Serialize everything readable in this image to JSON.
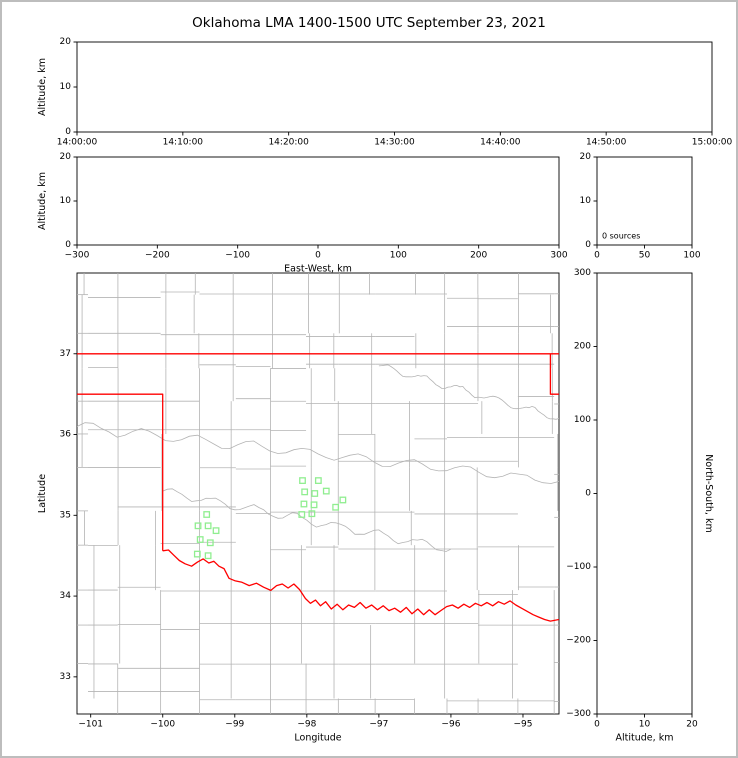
{
  "title": "Oklahoma LMA 1400-1500 UTC September 23, 2021",
  "colors": {
    "axis": "#000000",
    "county": "#b4b4b4",
    "state_border": "#ff0000",
    "station": "#90EE90",
    "background": "#ffffff",
    "figure_border": "#bdbdbd"
  },
  "chart_data": [
    {
      "id": "time_height",
      "type": "scatter",
      "ylabel": "Altitude, km",
      "xlim": [
        0,
        6
      ],
      "xtick_values": [
        0,
        1,
        2,
        3,
        4,
        5,
        6
      ],
      "xtick_labels": [
        "14:00:00",
        "14:10:00",
        "14:20:00",
        "14:30:00",
        "14:40:00",
        "14:50:00",
        "15:00:00"
      ],
      "ylim": [
        0,
        20
      ],
      "ytick_values": [
        0,
        10,
        20
      ],
      "points": []
    },
    {
      "id": "ew_height",
      "type": "scatter",
      "xlabel": "East-West, km",
      "ylabel": "Altitude, km",
      "xlim": [
        -300,
        300
      ],
      "xtick_values": [
        -300,
        -200,
        -100,
        0,
        100,
        200,
        300
      ],
      "ylim": [
        0,
        20
      ],
      "ytick_values": [
        0,
        10,
        20
      ],
      "points": []
    },
    {
      "id": "alt_histogram",
      "type": "histogram",
      "annotation": "0 sources",
      "xlim": [
        0,
        100
      ],
      "xtick_values": [
        0,
        50,
        100
      ],
      "ylim": [
        0,
        20
      ],
      "ytick_values": [
        0,
        10,
        20
      ],
      "points": []
    },
    {
      "id": "plan_view",
      "type": "scatter",
      "xlabel": "Longitude",
      "ylabel": "Latitude",
      "xlim": [
        -101.19,
        -94.5
      ],
      "xtick_values": [
        -101,
        -100,
        -99,
        -98,
        -97,
        -96,
        -95
      ],
      "ylim": [
        32.54,
        38.0
      ],
      "ytick_values": [
        33,
        34,
        35,
        36,
        37
      ],
      "stations": [
        [
          -98.06,
          35.43
        ],
        [
          -97.84,
          35.43
        ],
        [
          -98.03,
          35.29
        ],
        [
          -97.89,
          35.27
        ],
        [
          -97.73,
          35.3
        ],
        [
          -98.04,
          35.14
        ],
        [
          -97.9,
          35.13
        ],
        [
          -98.07,
          35.01
        ],
        [
          -97.93,
          35.02
        ],
        [
          -97.5,
          35.19
        ],
        [
          -97.6,
          35.1
        ],
        [
          -99.39,
          35.01
        ],
        [
          -99.51,
          34.87
        ],
        [
          -99.37,
          34.87
        ],
        [
          -99.26,
          34.81
        ],
        [
          -99.48,
          34.7
        ],
        [
          -99.34,
          34.66
        ],
        [
          -99.52,
          34.52
        ],
        [
          -99.37,
          34.5
        ]
      ],
      "state_border_segments": [
        [
          [
            -101.19,
            37.0
          ],
          [
            -94.5,
            37.0
          ]
        ],
        [
          [
            -94.62,
            37.0
          ],
          [
            -94.62,
            36.5
          ],
          [
            -94.5,
            36.5
          ]
        ],
        [
          [
            -101.19,
            36.5
          ],
          [
            -100.0,
            36.5
          ],
          [
            -100.0,
            34.56
          ]
        ],
        [
          [
            -100.0,
            34.56
          ],
          [
            -99.92,
            34.57
          ],
          [
            -99.84,
            34.5
          ],
          [
            -99.77,
            34.44
          ],
          [
            -99.69,
            34.4
          ],
          [
            -99.6,
            34.37
          ],
          [
            -99.52,
            34.42
          ],
          [
            -99.44,
            34.46
          ],
          [
            -99.36,
            34.41
          ],
          [
            -99.29,
            34.43
          ],
          [
            -99.22,
            34.37
          ],
          [
            -99.15,
            34.34
          ],
          [
            -99.08,
            34.22
          ],
          [
            -99.0,
            34.19
          ],
          [
            -98.9,
            34.17
          ],
          [
            -98.8,
            34.13
          ],
          [
            -98.7,
            34.16
          ],
          [
            -98.6,
            34.11
          ],
          [
            -98.5,
            34.07
          ],
          [
            -98.42,
            34.13
          ],
          [
            -98.34,
            34.15
          ],
          [
            -98.26,
            34.1
          ],
          [
            -98.18,
            34.15
          ],
          [
            -98.1,
            34.08
          ],
          [
            -98.02,
            33.97
          ],
          [
            -97.95,
            33.91
          ],
          [
            -97.88,
            33.95
          ],
          [
            -97.81,
            33.88
          ],
          [
            -97.74,
            33.93
          ],
          [
            -97.66,
            33.84
          ],
          [
            -97.58,
            33.9
          ],
          [
            -97.5,
            33.83
          ],
          [
            -97.42,
            33.89
          ],
          [
            -97.34,
            33.86
          ],
          [
            -97.26,
            33.92
          ],
          [
            -97.18,
            33.85
          ],
          [
            -97.1,
            33.89
          ],
          [
            -97.02,
            33.83
          ],
          [
            -96.94,
            33.88
          ],
          [
            -96.86,
            33.82
          ],
          [
            -96.78,
            33.85
          ],
          [
            -96.7,
            33.8
          ],
          [
            -96.62,
            33.86
          ],
          [
            -96.54,
            33.78
          ],
          [
            -96.46,
            33.84
          ],
          [
            -96.38,
            33.77
          ],
          [
            -96.3,
            33.83
          ],
          [
            -96.22,
            33.77
          ],
          [
            -96.14,
            33.82
          ],
          [
            -96.06,
            33.87
          ],
          [
            -95.98,
            33.89
          ],
          [
            -95.9,
            33.85
          ],
          [
            -95.82,
            33.9
          ],
          [
            -95.74,
            33.86
          ],
          [
            -95.66,
            33.91
          ],
          [
            -95.58,
            33.88
          ],
          [
            -95.5,
            33.92
          ],
          [
            -95.42,
            33.88
          ],
          [
            -95.34,
            33.93
          ],
          [
            -95.26,
            33.9
          ],
          [
            -95.18,
            33.94
          ],
          [
            -95.1,
            33.89
          ],
          [
            -95.02,
            33.85
          ],
          [
            -94.94,
            33.81
          ],
          [
            -94.86,
            33.77
          ],
          [
            -94.78,
            33.74
          ],
          [
            -94.7,
            33.71
          ],
          [
            -94.62,
            33.69
          ],
          [
            -94.5,
            33.71
          ]
        ]
      ]
    },
    {
      "id": "ns_height",
      "type": "scatter",
      "xlabel": "Altitude, km",
      "ylabel_right": "North-South, km",
      "xlim": [
        0,
        20
      ],
      "xtick_values": [
        0,
        10,
        20
      ],
      "ylim": [
        -300,
        300
      ],
      "ytick_values": [
        -300,
        -200,
        -100,
        0,
        100,
        200,
        300
      ],
      "points": []
    }
  ]
}
